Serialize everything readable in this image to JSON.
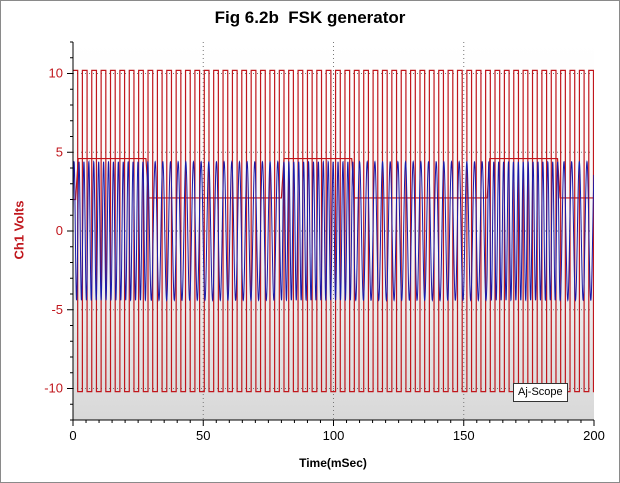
{
  "chart_data": {
    "type": "line",
    "title": "Fig 6.2b  FSK generator",
    "xlabel": "Time(mSec)",
    "ylabel": "Ch1 Volts",
    "xlim": [
      0,
      200
    ],
    "ylim": [
      -12,
      12
    ],
    "x_ticks": [
      0,
      50,
      100,
      150,
      200
    ],
    "y_ticks": [
      -10,
      -5,
      0,
      5,
      10
    ],
    "grid": true,
    "series": [
      {
        "color": "#c0161c",
        "style": "square-clock",
        "high": 10.2,
        "low": -10.2,
        "period_ms": 3.6
      },
      {
        "color": "#c0161c",
        "style": "data-envelope",
        "points": [
          [
            0,
            2
          ],
          [
            1,
            2
          ],
          [
            2,
            4.6
          ],
          [
            28,
            4.6
          ],
          [
            29,
            2.1
          ],
          [
            80,
            2.1
          ],
          [
            81,
            4.6
          ],
          [
            107,
            4.6
          ],
          [
            108,
            2.1
          ],
          [
            159,
            2.1
          ],
          [
            160,
            4.6
          ],
          [
            186,
            4.6
          ],
          [
            187,
            2.1
          ],
          [
            200,
            2.1
          ]
        ]
      },
      {
        "color": "#1a1aa8",
        "style": "fsk-sine",
        "amplitude": 4.4,
        "mark_freq_khz": 0.53,
        "space_freq_khz": 0.34,
        "mark_ranges_ms": [
          [
            0,
            29
          ],
          [
            80,
            108
          ],
          [
            159,
            187
          ]
        ]
      }
    ],
    "annotation": "Aj-Scope"
  }
}
